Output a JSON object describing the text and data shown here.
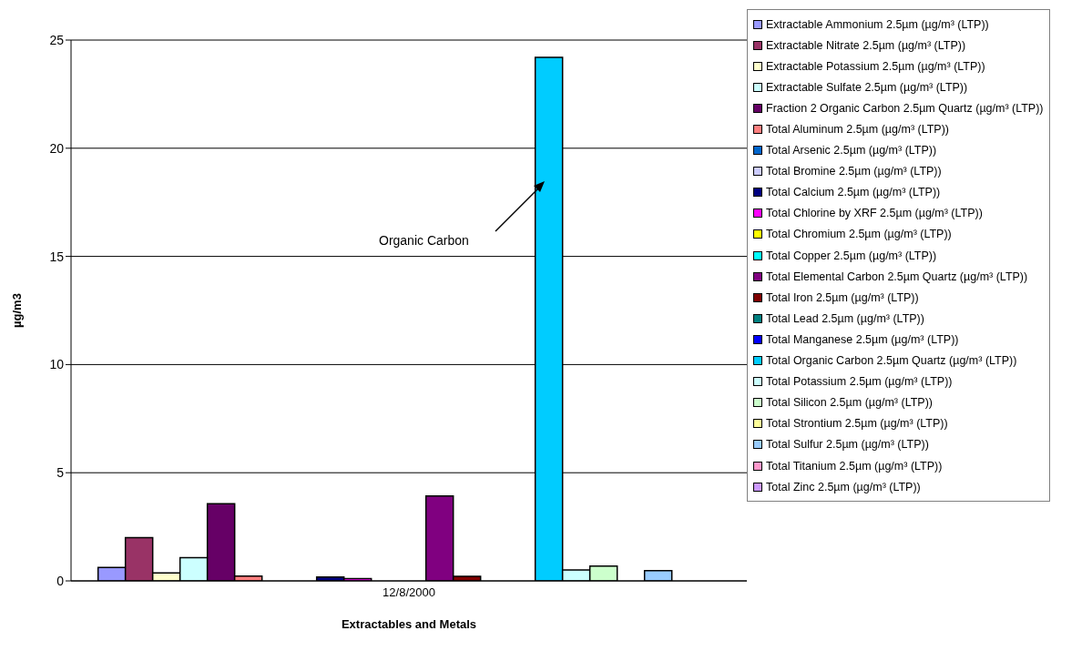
{
  "chart_data": {
    "type": "bar",
    "categories": [
      "12/8/2000"
    ],
    "xlabel": "Extractables and Metals",
    "ylabel": "µg/m3",
    "ylim": [
      0,
      25
    ],
    "yticks": [
      0,
      5,
      10,
      15,
      20,
      25
    ],
    "grid": "y",
    "legend": "top right",
    "annotations": [
      "Organic Carbon"
    ],
    "series": [
      {
        "name": "Extractable Ammonium 2.5µm (µg/m³ (LTP))",
        "color": "#9999ff",
        "values": [
          0.62
        ]
      },
      {
        "name": "Extractable Nitrate 2.5µm (µg/m³ (LTP))",
        "color": "#993366",
        "values": [
          2.0
        ]
      },
      {
        "name": "Extractable Potassium 2.5µm (µg/m³ (LTP))",
        "color": "#ffffcc",
        "values": [
          0.37
        ]
      },
      {
        "name": "Extractable Sulfate 2.5µm (µg/m³ (LTP))",
        "color": "#ccffff",
        "values": [
          1.07
        ]
      },
      {
        "name": "Fraction 2 Organic Carbon 2.5µm Quartz (µg/m³ (LTP))",
        "color": "#660066",
        "values": [
          3.57
        ]
      },
      {
        "name": "Total Aluminum 2.5µm (µg/m³ (LTP))",
        "color": "#ff8080",
        "values": [
          0.22
        ]
      },
      {
        "name": "Total Arsenic 2.5µm (µg/m³ (LTP))",
        "color": "#0066cc",
        "values": [
          0
        ]
      },
      {
        "name": "Total Bromine 2.5µm (µg/m³ (LTP))",
        "color": "#ccccff",
        "values": [
          0
        ]
      },
      {
        "name": "Total Calcium 2.5µm (µg/m³ (LTP))",
        "color": "#000080",
        "values": [
          0.18
        ]
      },
      {
        "name": "Total Chlorine by XRF 2.5µm (µg/m³ (LTP))",
        "color": "#ff00ff",
        "values": [
          0.11
        ]
      },
      {
        "name": "Total Chromium 2.5µm (µg/m³ (LTP))",
        "color": "#ffff00",
        "values": [
          0
        ]
      },
      {
        "name": "Total Copper 2.5µm (µg/m³ (LTP))",
        "color": "#00ffff",
        "values": [
          null
        ]
      },
      {
        "name": "Total Elemental Carbon 2.5µm Quartz (µg/m³ (LTP))",
        "color": "#800080",
        "values": [
          3.92
        ]
      },
      {
        "name": "Total Iron 2.5µm (µg/m³ (LTP))",
        "color": "#800000",
        "values": [
          0.21
        ]
      },
      {
        "name": "Total Lead 2.5µm (µg/m³ (LTP))",
        "color": "#008080",
        "values": [
          null
        ]
      },
      {
        "name": "Total Manganese 2.5µm (µg/m³ (LTP))",
        "color": "#0000ff",
        "values": [
          null
        ]
      },
      {
        "name": "Total Organic Carbon 2.5µm Quartz (µg/m³ (LTP))",
        "color": "#00ccff",
        "values": [
          24.2
        ]
      },
      {
        "name": "Total Potassium 2.5µm (µg/m³ (LTP))",
        "color": "#ccffff",
        "values": [
          0.51
        ]
      },
      {
        "name": "Total Silicon 2.5µm (µg/m³ (LTP))",
        "color": "#ccffcc",
        "values": [
          0.68
        ]
      },
      {
        "name": "Total Strontium 2.5µm (µg/m³ (LTP))",
        "color": "#ffff99",
        "values": [
          0
        ]
      },
      {
        "name": "Total Sulfur 2.5µm (µg/m³ (LTP))",
        "color": "#99ccff",
        "values": [
          0.47
        ]
      },
      {
        "name": "Total Titanium 2.5µm (µg/m³ (LTP))",
        "color": "#ff99cc",
        "values": [
          0
        ]
      },
      {
        "name": "Total Zinc 2.5µm (µg/m³ (LTP))",
        "color": "#cc99ff",
        "values": [
          null
        ]
      }
    ]
  }
}
